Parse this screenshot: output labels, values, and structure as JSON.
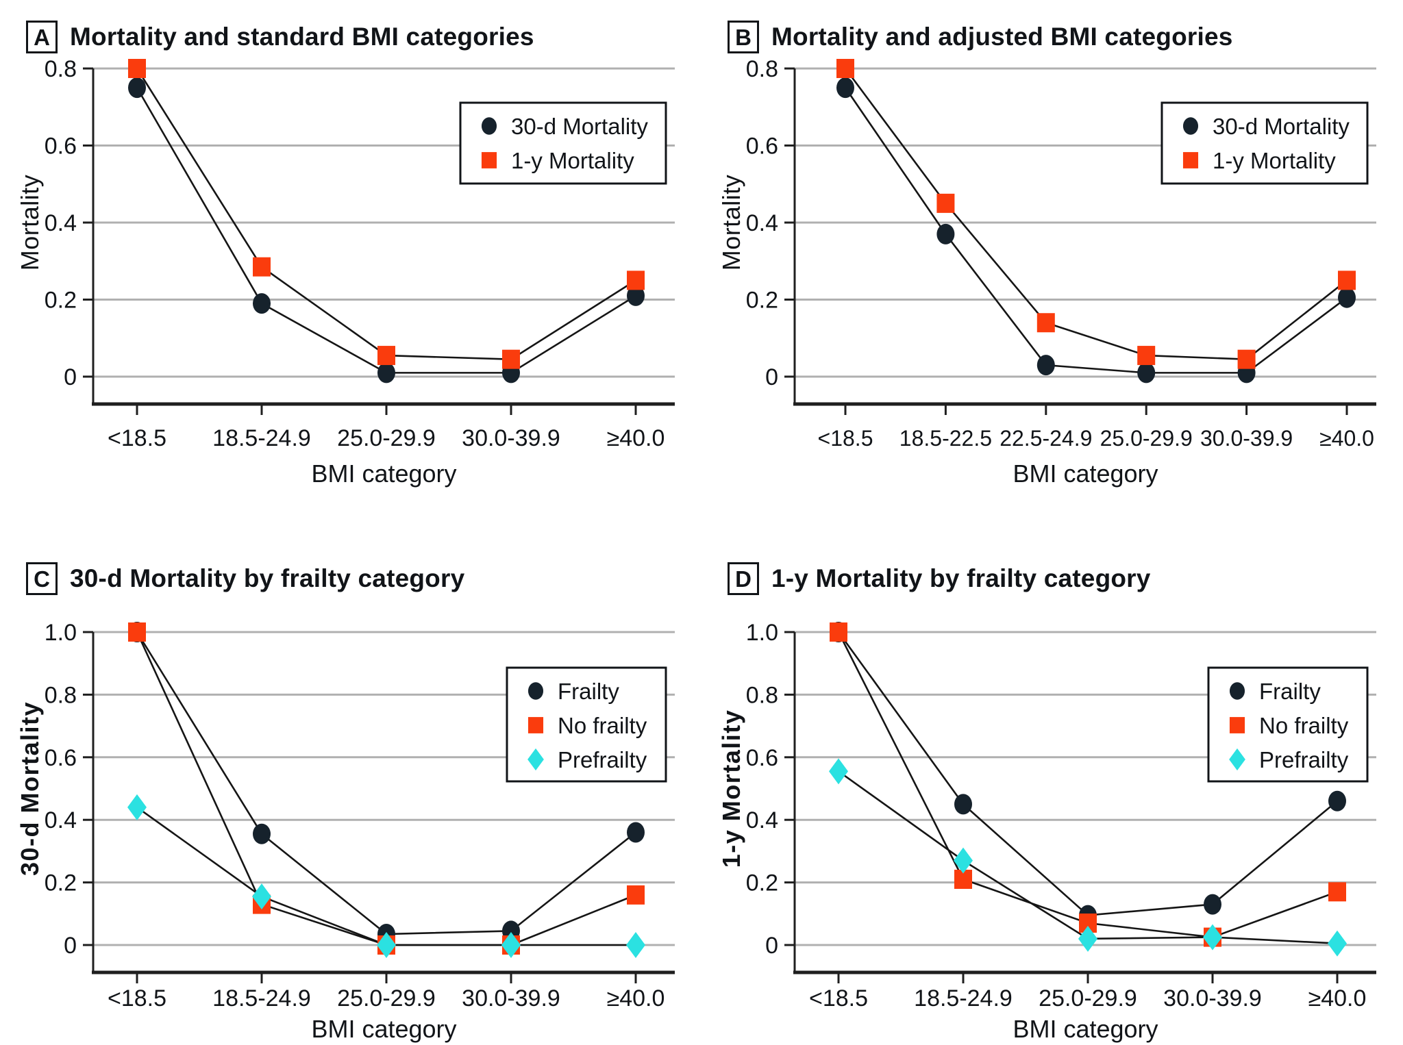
{
  "palette": {
    "series_black": "#16222c",
    "series_red": "#fa3c0d",
    "series_cyan": "#2be1e1",
    "gridline": "#b0b0b0",
    "axis": "#1f1f1f",
    "text": "#111418",
    "background": "#ffffff"
  },
  "chart_data": [
    {
      "type": "line",
      "panel_label": "A",
      "title": "Mortality and standard BMI categories",
      "xlabel": "BMI category",
      "ylabel": "Mortality",
      "categories": [
        "<18.5",
        "18.5-24.9",
        "25.0-29.9",
        "30.0-39.9",
        "≥40.0"
      ],
      "ylim": [
        0,
        0.8
      ],
      "yticks": [
        0,
        0.2,
        0.4,
        0.6,
        0.8
      ],
      "ytick_labels": [
        "0",
        "0.2",
        "0.4",
        "0.6",
        "0.8"
      ],
      "grid": true,
      "legend_position": "top-right",
      "series": [
        {
          "name": "30-d Mortality",
          "marker": "circle",
          "color": "#16222c",
          "values": [
            0.75,
            0.19,
            0.01,
            0.01,
            0.21
          ]
        },
        {
          "name": "1-y Mortality",
          "marker": "square",
          "color": "#fa3c0d",
          "values": [
            0.8,
            0.285,
            0.055,
            0.045,
            0.25
          ]
        }
      ]
    },
    {
      "type": "line",
      "panel_label": "B",
      "title": "Mortality and adjusted BMI categories",
      "xlabel": "BMI category",
      "ylabel": "Mortality",
      "categories": [
        "<18.5",
        "18.5-22.5",
        "22.5-24.9",
        "25.0-29.9",
        "30.0-39.9",
        "≥40.0"
      ],
      "ylim": [
        0,
        0.8
      ],
      "yticks": [
        0,
        0.2,
        0.4,
        0.6,
        0.8
      ],
      "ytick_labels": [
        "0",
        "0.2",
        "0.4",
        "0.6",
        "0.8"
      ],
      "grid": true,
      "legend_position": "top-right",
      "series": [
        {
          "name": "30-d Mortality",
          "marker": "circle",
          "color": "#16222c",
          "values": [
            0.75,
            0.37,
            0.03,
            0.01,
            0.01,
            0.205
          ]
        },
        {
          "name": "1-y Mortality",
          "marker": "square",
          "color": "#fa3c0d",
          "values": [
            0.8,
            0.45,
            0.14,
            0.055,
            0.045,
            0.25
          ]
        }
      ]
    },
    {
      "type": "line",
      "panel_label": "C",
      "title": "30-d Mortality by frailty category",
      "xlabel": "BMI category",
      "ylabel": "30-d Mortality",
      "categories": [
        "<18.5",
        "18.5-24.9",
        "25.0-29.9",
        "30.0-39.9",
        "≥40.0"
      ],
      "ylim": [
        0,
        1.0
      ],
      "yticks": [
        0,
        0.2,
        0.4,
        0.6,
        0.8,
        1.0
      ],
      "ytick_labels": [
        "0",
        "0.2",
        "0.4",
        "0.6",
        "0.8",
        "1.0"
      ],
      "grid": true,
      "legend_position": "top-right",
      "series": [
        {
          "name": "Frailty",
          "marker": "circle",
          "color": "#16222c",
          "values": [
            1.0,
            0.355,
            0.035,
            0.045,
            0.36
          ]
        },
        {
          "name": "No frailty",
          "marker": "square",
          "color": "#fa3c0d",
          "values": [
            1.0,
            0.13,
            0.0,
            0.0,
            0.16
          ]
        },
        {
          "name": "Prefrailty",
          "marker": "diamond",
          "color": "#2be1e1",
          "values": [
            0.44,
            0.155,
            0.0,
            0.0,
            0.0
          ]
        }
      ]
    },
    {
      "type": "line",
      "panel_label": "D",
      "title": "1-y Mortality by frailty category",
      "xlabel": "BMI category",
      "ylabel": "1-y Mortality",
      "categories": [
        "<18.5",
        "18.5-24.9",
        "25.0-29.9",
        "30.0-39.9",
        "≥40.0"
      ],
      "ylim": [
        0,
        1.0
      ],
      "yticks": [
        0,
        0.2,
        0.4,
        0.6,
        0.8,
        1.0
      ],
      "ytick_labels": [
        "0",
        "0.2",
        "0.4",
        "0.6",
        "0.8",
        "1.0"
      ],
      "grid": true,
      "legend_position": "top-right",
      "series": [
        {
          "name": "Frailty",
          "marker": "circle",
          "color": "#16222c",
          "values": [
            1.0,
            0.45,
            0.095,
            0.13,
            0.46
          ]
        },
        {
          "name": "No frailty",
          "marker": "square",
          "color": "#fa3c0d",
          "values": [
            1.0,
            0.21,
            0.07,
            0.025,
            0.17
          ]
        },
        {
          "name": "Prefrailty",
          "marker": "diamond",
          "color": "#2be1e1",
          "values": [
            0.555,
            0.27,
            0.02,
            0.025,
            0.005
          ]
        }
      ]
    }
  ]
}
